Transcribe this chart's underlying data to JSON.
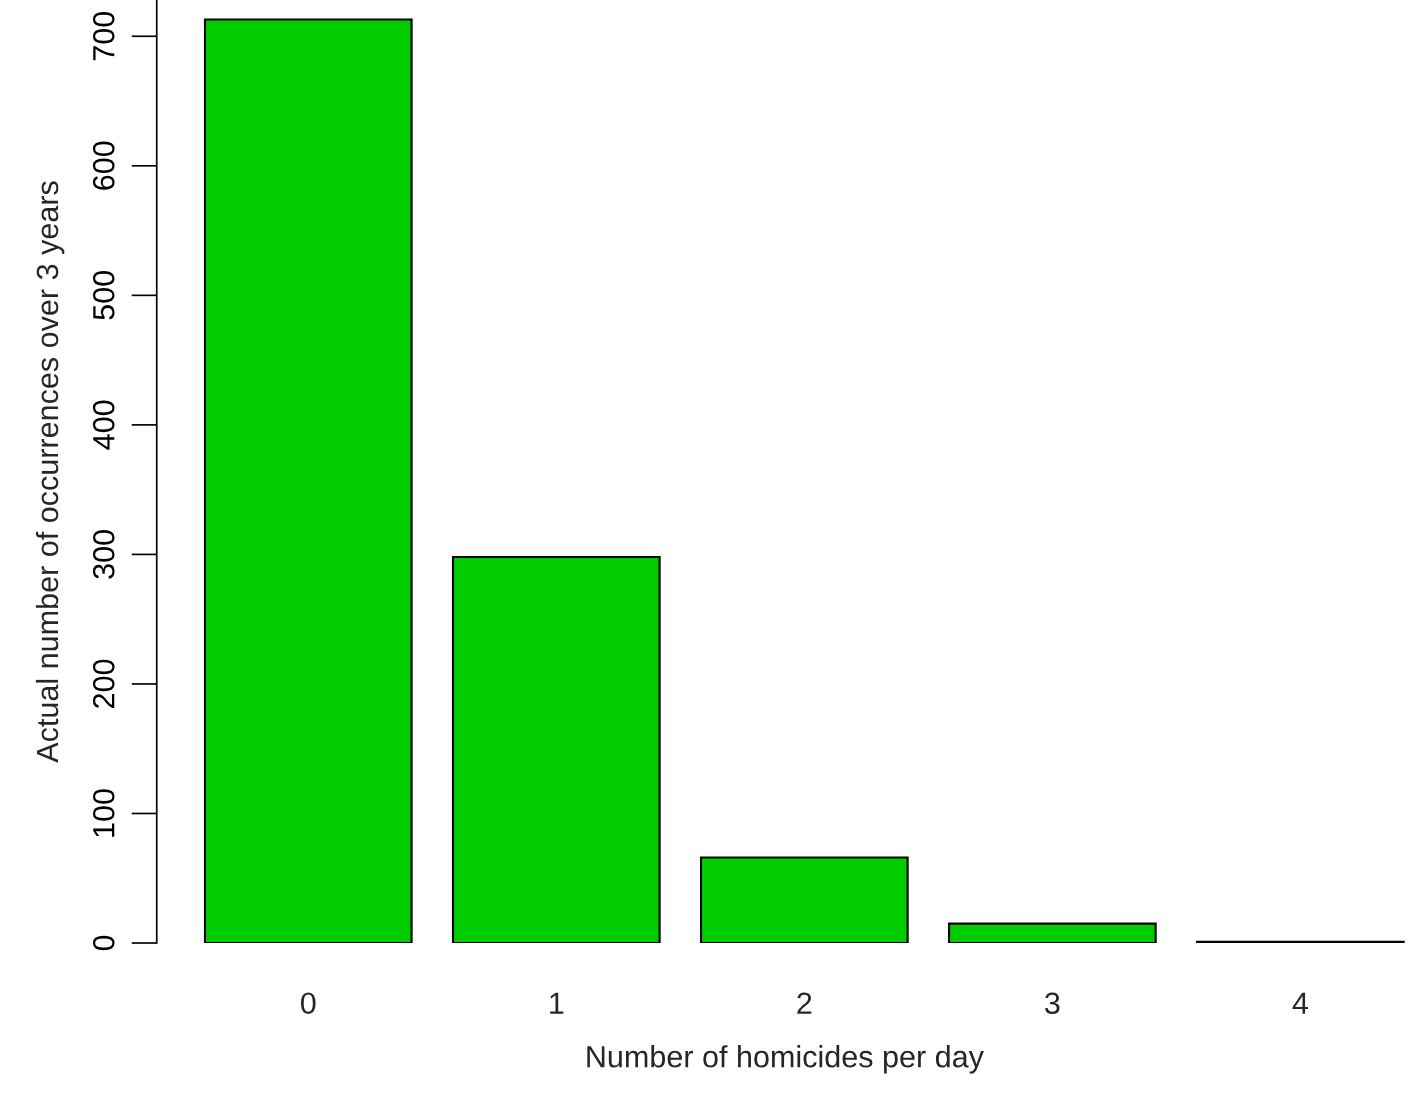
{
  "chart_data": {
    "type": "bar",
    "xlabel": "Number of homicides per day",
    "ylabel": "Actual number of occurrences over 3 years",
    "categories": [
      "0",
      "1",
      "2",
      "3",
      "4"
    ],
    "values": [
      713,
      298,
      66,
      15,
      1
    ],
    "color": "#00cc00",
    "ylim": [
      0,
      728
    ],
    "yticks": [
      0,
      100,
      200,
      300,
      400,
      500,
      600,
      700
    ],
    "grid": false
  }
}
